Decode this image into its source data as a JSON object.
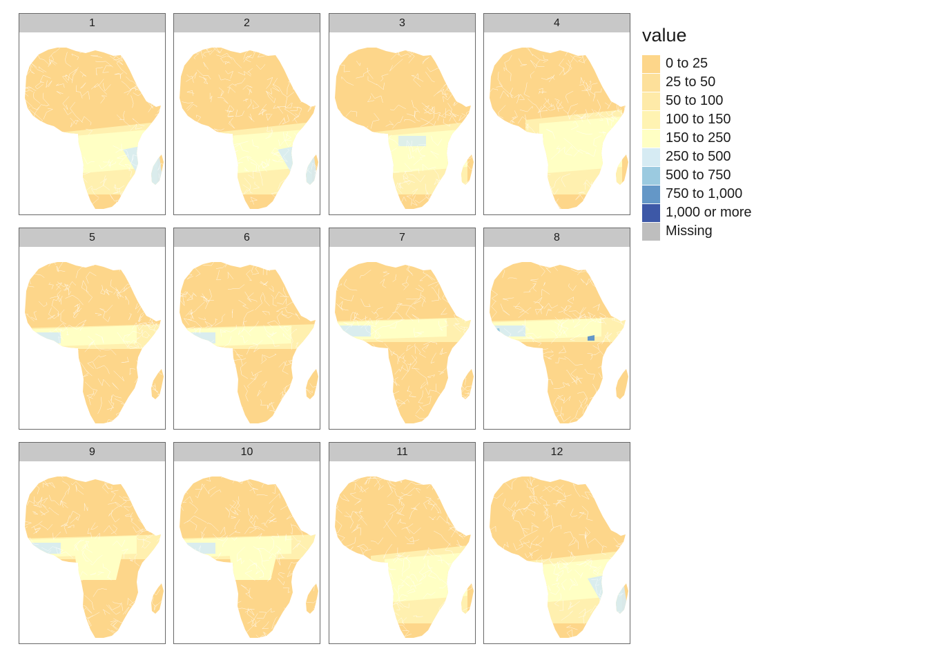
{
  "legend": {
    "title": "value",
    "items": [
      {
        "label": "0 to 25",
        "color": "#fdd68a"
      },
      {
        "label": "25 to 50",
        "color": "#fde09a"
      },
      {
        "label": "50 to 100",
        "color": "#feeaa8"
      },
      {
        "label": "100 to 150",
        "color": "#fff3b2"
      },
      {
        "label": "150 to 250",
        "color": "#ffffc4"
      },
      {
        "label": "250 to 500",
        "color": "#d6ebf3"
      },
      {
        "label": "500 to 750",
        "color": "#9bcae0"
      },
      {
        "label": "750 to 1,000",
        "color": "#6497c7"
      },
      {
        "label": "1,000 or more",
        "color": "#3d58a7"
      },
      {
        "label": "Missing",
        "color": "#bebebe"
      }
    ]
  },
  "panels": [
    {
      "label": "1"
    },
    {
      "label": "2"
    },
    {
      "label": "3"
    },
    {
      "label": "4"
    },
    {
      "label": "5"
    },
    {
      "label": "6"
    },
    {
      "label": "7"
    },
    {
      "label": "8"
    },
    {
      "label": "9"
    },
    {
      "label": "10"
    },
    {
      "label": "11"
    },
    {
      "label": "12"
    }
  ]
}
